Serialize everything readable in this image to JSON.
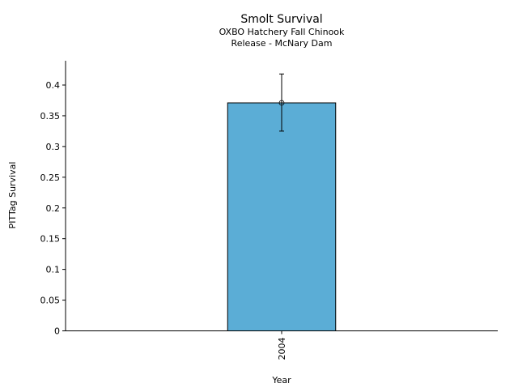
{
  "chart_data": {
    "type": "bar",
    "title": "Smolt Survival",
    "subtitle_lines": [
      "OXBO Hatchery Fall Chinook",
      "Release - McNary Dam"
    ],
    "xlabel": "Year",
    "ylabel": "PITTag Survival",
    "categories": [
      "2004"
    ],
    "values": [
      0.371
    ],
    "error_low": [
      0.325
    ],
    "error_high": [
      0.418
    ],
    "ylim": [
      0,
      0.44
    ],
    "yticks": [
      0,
      0.05,
      0.1,
      0.15,
      0.2,
      0.25,
      0.3,
      0.35,
      0.4
    ],
    "ytick_labels": [
      "0",
      "0.05",
      "0.1",
      "0.15",
      "0.2",
      "0.25",
      "0.3",
      "0.35",
      "0.4"
    ],
    "grid": false,
    "bar_color": "#5badd6"
  }
}
